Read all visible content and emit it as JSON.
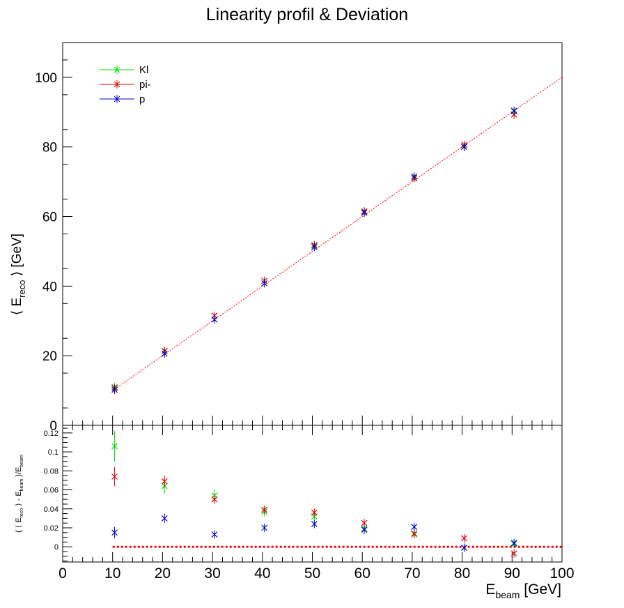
{
  "title": "Linearity profil & Deviation",
  "colors": {
    "Kl": "#00dd00",
    "pi-": "#dd0000",
    "p": "#0000cc",
    "fit": "#ff0000",
    "zero_line": "#ff0000"
  },
  "legend": {
    "placement": "top-left",
    "entries": [
      "Kl",
      "pi-",
      "p"
    ]
  },
  "chart_data": [
    {
      "type": "scatter",
      "name": "linearity",
      "ylabel_prefix": "⟨ E",
      "ylabel_sub": "reco",
      "ylabel_suffix": " ⟩ [GeV]",
      "xlim": [
        0,
        100
      ],
      "ylim": [
        0,
        110
      ],
      "yticks": [
        0,
        20,
        40,
        60,
        80,
        100
      ],
      "fit_line": {
        "x": [
          10,
          100
        ],
        "y": [
          10,
          100
        ],
        "style": "dotted"
      },
      "series": [
        {
          "name": "Kl",
          "x": [
            10.4,
            20.4,
            30.4,
            40.4,
            50.4,
            60.4,
            70.4,
            80.4,
            90.4
          ],
          "y": [
            11.0,
            21.3,
            31.5,
            41.5,
            51.6,
            61.3,
            71.1,
            80.1,
            90.2
          ],
          "yerr": [
            0.2,
            0.2,
            0.2,
            0.2,
            0.2,
            0.2,
            0.2,
            0.2,
            0.3
          ]
        },
        {
          "name": "pi-",
          "x": [
            10.4,
            20.4,
            30.4,
            40.4,
            50.4,
            60.4,
            70.4,
            80.4,
            90.4
          ],
          "y": [
            10.7,
            21.4,
            31.5,
            41.5,
            51.8,
            61.5,
            71.0,
            80.6,
            89.3
          ],
          "yerr": [
            0.2,
            0.2,
            0.2,
            0.2,
            0.2,
            0.2,
            0.2,
            0.2,
            0.3
          ]
        },
        {
          "name": "p",
          "x": [
            10.4,
            20.4,
            30.4,
            40.4,
            50.4,
            60.4,
            70.4,
            80.4,
            90.4
          ],
          "y": [
            10.2,
            20.6,
            30.4,
            40.8,
            51.2,
            61.1,
            71.5,
            80.0,
            90.4
          ],
          "yerr": [
            0.2,
            0.2,
            0.2,
            0.2,
            0.2,
            0.2,
            0.2,
            0.2,
            0.3
          ]
        }
      ]
    },
    {
      "type": "scatter",
      "name": "deviation",
      "ylabel_parts": [
        "( ⟨ E",
        "reco",
        " ⟩ - E",
        "beam",
        " )/E",
        "beam"
      ],
      "xlabel_main": "E",
      "xlabel_sub": "beam",
      "xlabel_suffix": " [GeV]",
      "xlim": [
        0,
        100
      ],
      "ylim": [
        -0.016,
        0.128
      ],
      "xticks": [
        0,
        10,
        20,
        30,
        40,
        50,
        60,
        70,
        80,
        90,
        100
      ],
      "yticks": [
        0,
        0.02,
        0.04,
        0.06,
        0.08,
        0.1,
        0.12
      ],
      "yticklabels": [
        "0",
        "0.02",
        "0.04",
        "0.06",
        "0.08",
        "0.1",
        "0.12"
      ],
      "zero_line": {
        "y": 0,
        "style": "dotted"
      },
      "series": [
        {
          "name": "Kl",
          "x": [
            10.4,
            20.4,
            30.4,
            40.4,
            50.4,
            60.4,
            70.4,
            80.4,
            90.4
          ],
          "y": [
            0.106,
            0.064,
            0.054,
            0.037,
            0.032,
            0.019,
            0.013,
            -0.001,
            0.003
          ],
          "yerr": [
            0.016,
            0.008,
            0.006,
            0.005,
            0.004,
            0.003,
            0.003,
            0.003,
            0.003
          ]
        },
        {
          "name": "pi-",
          "x": [
            10.4,
            20.4,
            30.4,
            40.4,
            50.4,
            60.4,
            70.4,
            80.4,
            90.4
          ],
          "y": [
            0.074,
            0.069,
            0.05,
            0.039,
            0.036,
            0.025,
            0.014,
            0.009,
            -0.007
          ],
          "yerr": [
            0.01,
            0.006,
            0.005,
            0.004,
            0.004,
            0.003,
            0.003,
            0.003,
            0.003
          ]
        },
        {
          "name": "p",
          "x": [
            10.4,
            20.4,
            30.4,
            40.4,
            50.4,
            60.4,
            70.4,
            80.4,
            90.4
          ],
          "y": [
            0.015,
            0.03,
            0.013,
            0.02,
            0.024,
            0.018,
            0.021,
            -0.001,
            0.004
          ],
          "yerr": [
            0.006,
            0.005,
            0.004,
            0.004,
            0.003,
            0.003,
            0.003,
            0.003,
            0.003
          ]
        }
      ]
    }
  ]
}
